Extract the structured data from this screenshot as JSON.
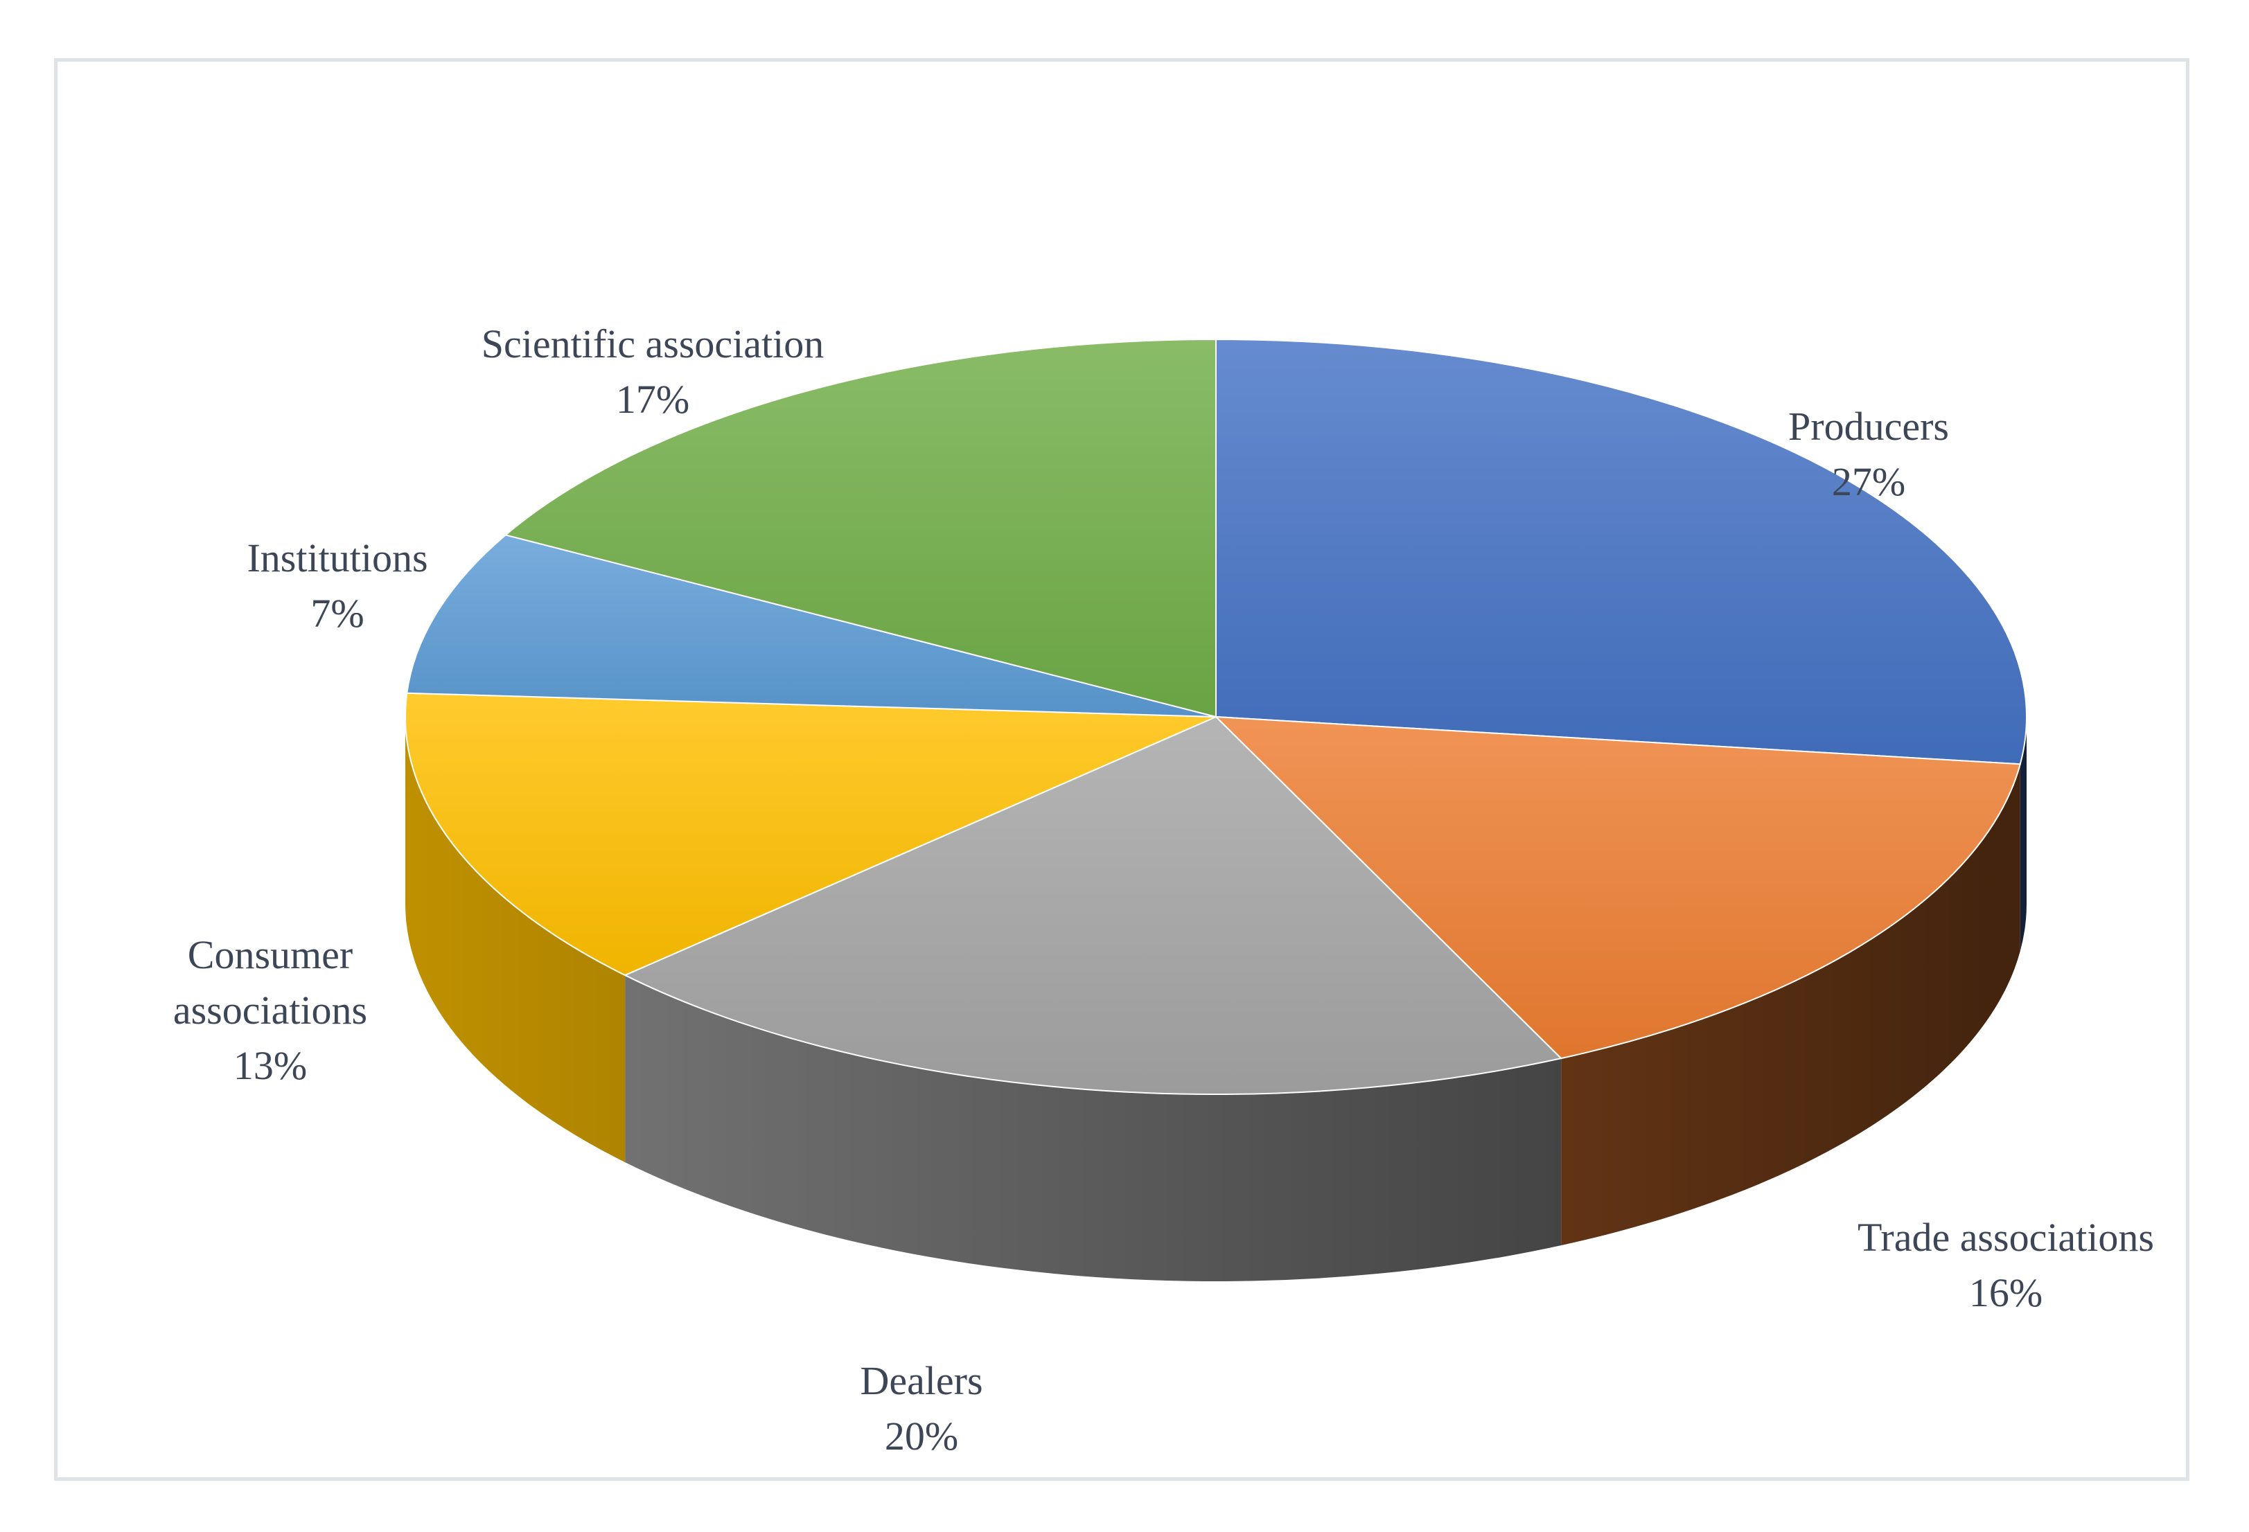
{
  "chart_data": {
    "type": "pie",
    "style": "3d",
    "title": "",
    "slices": [
      {
        "label": "Producers",
        "value": 27,
        "value_label": "27%",
        "color": "#4472c4"
      },
      {
        "label": "Trade associations",
        "value": 16,
        "value_label": "16%",
        "color": "#ed7d31"
      },
      {
        "label": "Dealers",
        "value": 20,
        "value_label": "20%",
        "color": "#a5a5a5"
      },
      {
        "label": "Consumer associations",
        "value": 13,
        "value_label": "13%",
        "color": "#ffc000"
      },
      {
        "label": "Institutions",
        "value": 7,
        "value_label": "7%",
        "color": "#5b9bd5"
      },
      {
        "label": "Scientific association",
        "value": 17,
        "value_label": "17%",
        "color": "#70ad47"
      }
    ],
    "legend": "none",
    "data_labels": "outside"
  }
}
